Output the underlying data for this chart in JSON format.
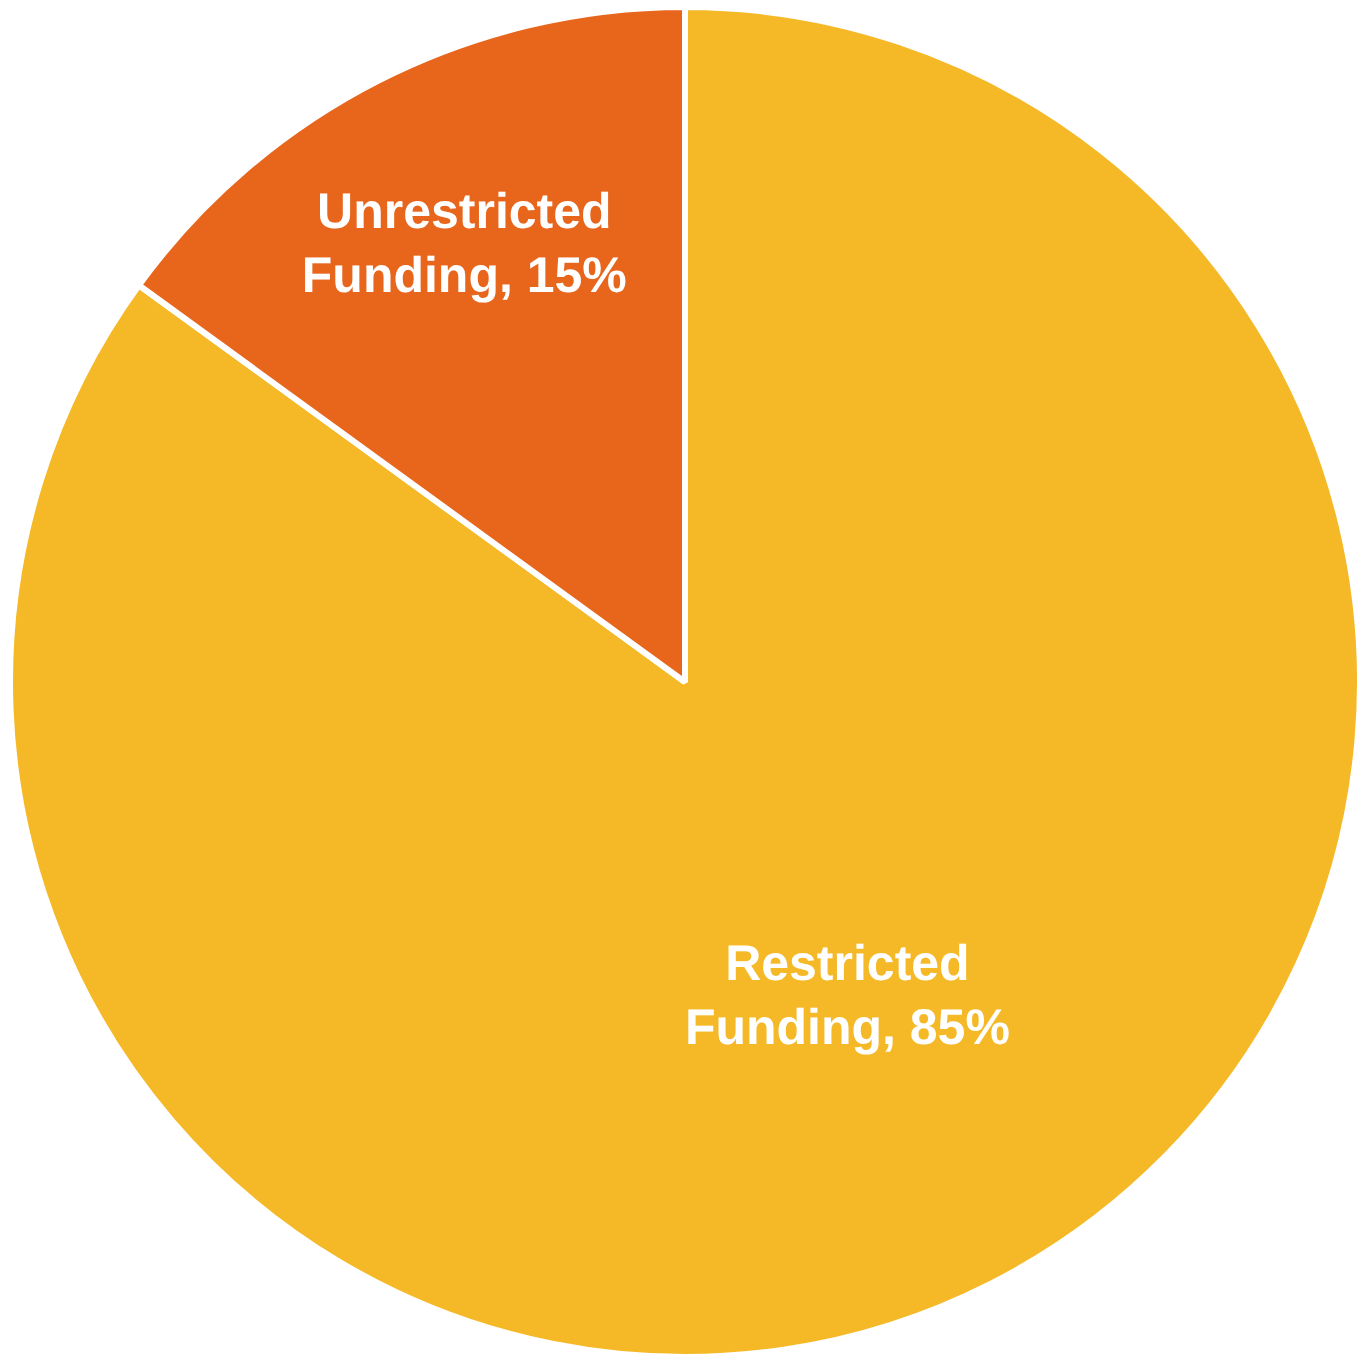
{
  "chart_data": {
    "type": "pie",
    "categories": [
      "Restricted Funding",
      "Unrestricted Funding"
    ],
    "values": [
      85,
      15
    ],
    "colors": [
      "#f5b928",
      "#e8651c"
    ],
    "value_labels": [
      ", 85%",
      ", 15%"
    ],
    "legend": false
  }
}
